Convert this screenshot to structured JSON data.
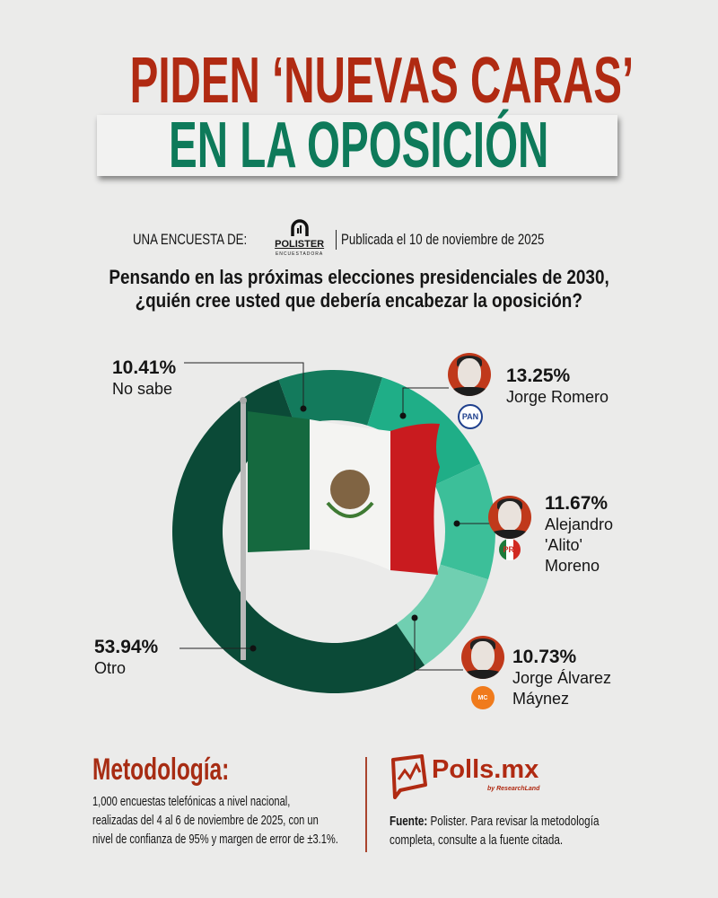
{
  "header": {
    "title_line1": "PIDEN ‘NUEVAS CARAS’",
    "title_line2": "EN LA OPOSICIÓN",
    "byline_prefix": "UNA ENCUESTA DE:",
    "pollster_logo": "POLISTER",
    "pollster_logo_sub": "ENCUESTADORA",
    "published": "Publicada el 10 de noviembre de 2025"
  },
  "question_line1": "Pensando en las próximas elecciones presidenciales de 2030,",
  "question_line2": "¿quién cree usted que debería encabezar la oposición?",
  "chart_data": {
    "type": "pie",
    "donut": true,
    "slices": [
      {
        "label": "No sabe",
        "value": 10.41,
        "display": "10.41%",
        "color": "#137a5c"
      },
      {
        "label": "Jorge Romero",
        "value": 13.25,
        "display": "13.25%",
        "color": "#1fae87",
        "party": "PAN"
      },
      {
        "label": "Alejandro 'Alito' Moreno",
        "label_lines": [
          "Alejandro",
          "'Alito'",
          "Moreno"
        ],
        "value": 11.67,
        "display": "11.67%",
        "color": "#3cbf99",
        "party": "PRI"
      },
      {
        "label": "Jorge Álvarez Máynez",
        "label_lines": [
          "Jorge Álvarez",
          "Máynez"
        ],
        "value": 10.73,
        "display": "10.73%",
        "color": "#70cfb1",
        "party": "MC"
      },
      {
        "label": "Otro",
        "value": 53.94,
        "display": "53.94%",
        "color": "#0b4a37"
      }
    ]
  },
  "colors": {
    "title_red": "#b02a12",
    "title_green": "#0e7a5a",
    "background": "#ebebea"
  },
  "methodology": {
    "title": "Metodología:",
    "lines": [
      "1,000 encuestas telefónicas a nivel nacional,",
      "realizadas del 4 al 6 de noviembre de 2025, con un",
      "nivel de confianza de 95% y margen de error de ±3.1%."
    ]
  },
  "source": {
    "logo_name": "Polls.mx",
    "logo_sub": "by ResearchLand",
    "label": "Fuente:",
    "line1_rest": " Polister. Para revisar la metodología",
    "line2": "completa, consulte a la fuente citada."
  }
}
